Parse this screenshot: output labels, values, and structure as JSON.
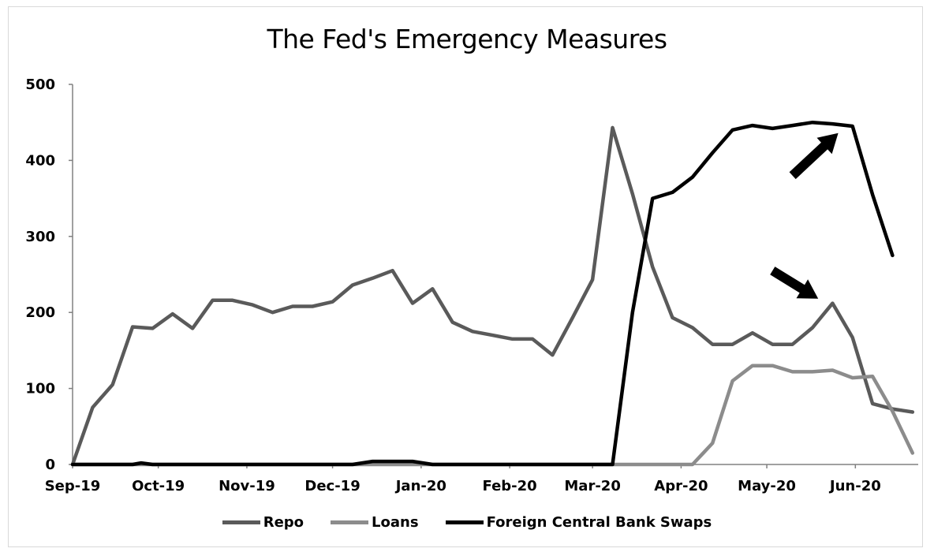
{
  "chart_data": {
    "type": "line",
    "title": "The Fed's Emergency Measures",
    "xlabel": "",
    "ylabel": "",
    "ylim": [
      0,
      500
    ],
    "yticks": [
      "0",
      "100",
      "200",
      "300",
      "400",
      "500"
    ],
    "xlim": [
      "2019-09-01",
      "2020-06-23"
    ],
    "xticks": [
      "Sep-19",
      "Oct-19",
      "Nov-19",
      "Dec-19",
      "Jan-20",
      "Feb-20",
      "Mar-20",
      "Apr-20",
      "May-20",
      "Jun-20"
    ],
    "xtick_dates": [
      "2019-09-01",
      "2019-10-01",
      "2019-11-01",
      "2019-12-01",
      "2020-01-01",
      "2020-02-01",
      "2020-03-01",
      "2020-04-01",
      "2020-05-01",
      "2020-06-01"
    ],
    "grid": false,
    "legend_position": "bottom",
    "series": [
      {
        "name": "Repo",
        "color": "#5a5a5a",
        "points": [
          [
            "2019-09-01",
            0
          ],
          [
            "2019-09-08",
            75
          ],
          [
            "2019-09-15",
            105
          ],
          [
            "2019-09-22",
            181
          ],
          [
            "2019-09-29",
            179
          ],
          [
            "2019-10-06",
            198
          ],
          [
            "2019-10-13",
            179
          ],
          [
            "2019-10-20",
            216
          ],
          [
            "2019-10-27",
            216
          ],
          [
            "2019-11-03",
            210
          ],
          [
            "2019-11-10",
            200
          ],
          [
            "2019-11-17",
            208
          ],
          [
            "2019-11-24",
            208
          ],
          [
            "2019-12-01",
            214
          ],
          [
            "2019-12-08",
            236
          ],
          [
            "2019-12-15",
            245
          ],
          [
            "2019-12-22",
            255
          ],
          [
            "2019-12-29",
            212
          ],
          [
            "2020-01-05",
            231
          ],
          [
            "2020-01-12",
            187
          ],
          [
            "2020-01-19",
            175
          ],
          [
            "2020-01-26",
            170
          ],
          [
            "2020-02-02",
            165
          ],
          [
            "2020-02-09",
            165
          ],
          [
            "2020-02-16",
            144
          ],
          [
            "2020-02-23",
            193
          ],
          [
            "2020-03-01",
            243
          ],
          [
            "2020-03-08",
            443
          ],
          [
            "2020-03-15",
            356
          ],
          [
            "2020-03-22",
            260
          ],
          [
            "2020-03-29",
            193
          ],
          [
            "2020-04-05",
            180
          ],
          [
            "2020-04-12",
            158
          ],
          [
            "2020-04-19",
            158
          ],
          [
            "2020-04-26",
            173
          ],
          [
            "2020-05-03",
            158
          ],
          [
            "2020-05-10",
            158
          ],
          [
            "2020-05-17",
            180
          ],
          [
            "2020-05-24",
            212
          ],
          [
            "2020-05-31",
            167
          ],
          [
            "2020-06-07",
            80
          ],
          [
            "2020-06-14",
            73
          ],
          [
            "2020-06-21",
            69
          ]
        ]
      },
      {
        "name": "Loans",
        "color": "#8c8c8c",
        "points": [
          [
            "2019-09-01",
            0
          ],
          [
            "2020-04-05",
            0
          ],
          [
            "2020-04-12",
            28
          ],
          [
            "2020-04-19",
            110
          ],
          [
            "2020-04-26",
            130
          ],
          [
            "2020-05-03",
            130
          ],
          [
            "2020-05-10",
            122
          ],
          [
            "2020-05-17",
            122
          ],
          [
            "2020-05-24",
            124
          ],
          [
            "2020-05-31",
            114
          ],
          [
            "2020-06-07",
            116
          ],
          [
            "2020-06-14",
            70
          ],
          [
            "2020-06-21",
            15
          ]
        ]
      },
      {
        "name": "Foreign Central Bank Swaps",
        "color": "#000000",
        "points": [
          [
            "2019-09-01",
            0
          ],
          [
            "2019-09-22",
            0
          ],
          [
            "2019-09-25",
            2
          ],
          [
            "2019-09-29",
            0
          ],
          [
            "2019-12-08",
            0
          ],
          [
            "2019-12-15",
            4
          ],
          [
            "2019-12-29",
            4
          ],
          [
            "2020-01-05",
            0
          ],
          [
            "2020-03-08",
            0
          ],
          [
            "2020-03-15",
            200
          ],
          [
            "2020-03-22",
            350
          ],
          [
            "2020-03-29",
            358
          ],
          [
            "2020-04-05",
            378
          ],
          [
            "2020-04-12",
            410
          ],
          [
            "2020-04-19",
            440
          ],
          [
            "2020-04-26",
            446
          ],
          [
            "2020-05-03",
            442
          ],
          [
            "2020-05-10",
            446
          ],
          [
            "2020-05-17",
            450
          ],
          [
            "2020-05-24",
            448
          ],
          [
            "2020-05-31",
            445
          ],
          [
            "2020-06-07",
            355
          ],
          [
            "2020-06-14",
            275
          ]
        ]
      }
    ],
    "annotations": [
      {
        "type": "arrow",
        "from": [
          "2020-05-10",
          380
        ],
        "to": [
          "2020-05-26",
          436
        ],
        "color": "#000000"
      },
      {
        "type": "arrow",
        "from": [
          "2020-05-03",
          255
        ],
        "to": [
          "2020-05-19",
          218
        ],
        "color": "#000000"
      }
    ]
  }
}
